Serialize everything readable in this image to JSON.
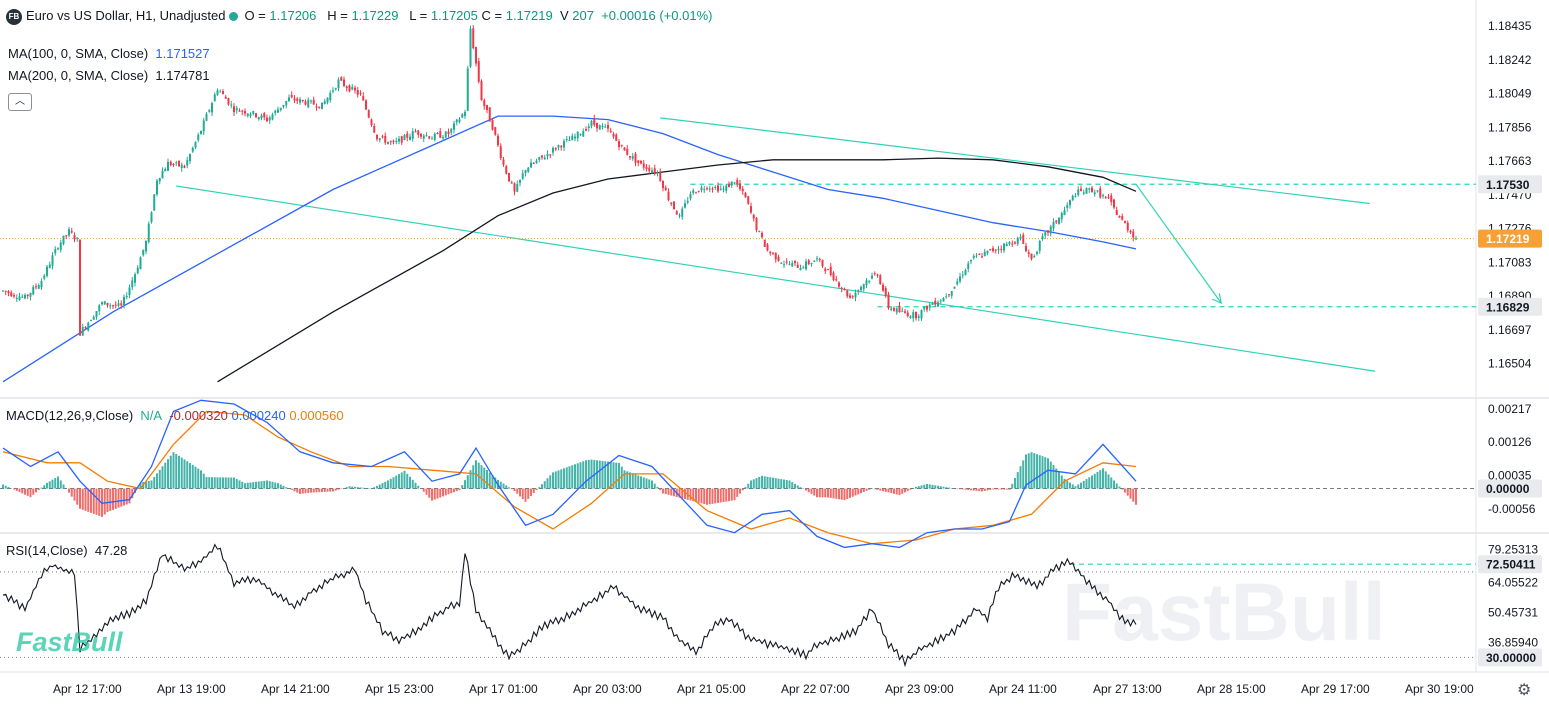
{
  "header": {
    "logo": "FB",
    "title": "Euro vs US Dollar, H1, Unadjusted",
    "open_label": "O",
    "open": "1.17206",
    "high_label": "H",
    "high": "1.17229",
    "low_label": "L",
    "low": "1.17205",
    "close_label": "C",
    "close": "1.17219",
    "volume_label": "V",
    "volume": "207",
    "change": "+0.00016 (+0.01%)"
  },
  "ma100": {
    "label": "MA(100, 0, SMA, Close)",
    "value": "1.171527",
    "color": "#2962ff"
  },
  "ma200": {
    "label": "MA(200, 0, SMA, Close)",
    "value": "1.174781",
    "color": "#131722"
  },
  "macd": {
    "label": "MACD(12,26,9,Close)",
    "na": "N/A",
    "hist": "-0.000320",
    "macd": "0.000240",
    "signal": "0.000560"
  },
  "rsi": {
    "label": "RSI(14,Close)",
    "value": "47.28"
  },
  "watermark": "FastBull",
  "colors": {
    "up": "#22ab94",
    "down": "#f23645",
    "ma100": "#2962ff",
    "ma200": "#131722",
    "macd": "#2962ff",
    "signal": "#f57c00",
    "channel": "#2ed3b7",
    "price_tag": "#f7a035"
  },
  "chart_data": {
    "type": "candlestick",
    "title": "Euro vs US Dollar, H1, Unadjusted",
    "x_ticks": [
      "Apr 12 17:00",
      "Apr 13 19:00",
      "Apr 14 21:00",
      "Apr 15 23:00",
      "Apr 17 01:00",
      "Apr 20 03:00",
      "Apr 21 05:00",
      "Apr 22 07:00",
      "Apr 23 09:00",
      "Apr 24 11:00",
      "Apr 27 13:00",
      "Apr 28 15:00",
      "Apr 29 17:00",
      "Apr 30 19:00"
    ],
    "price_axis": {
      "ticks": [
        "1.18435",
        "1.18242",
        "1.18049",
        "1.17856",
        "1.17663",
        "1.17470",
        "1.17276",
        "1.17083",
        "1.16890",
        "1.16697",
        "1.16504"
      ],
      "ylim": [
        1.1633,
        1.1855
      ]
    },
    "price_labels": [
      {
        "value": "1.17530",
        "kind": "level"
      },
      {
        "value": "1.17219",
        "kind": "current"
      },
      {
        "value": "1.16829",
        "kind": "level"
      }
    ],
    "price_path": [
      [
        0,
        1.1692
      ],
      [
        8,
        1.1688
      ],
      [
        14,
        1.1698
      ],
      [
        20,
        1.1718
      ],
      [
        24,
        1.1726
      ],
      [
        27,
        1.1721
      ],
      [
        28,
        1.1668
      ],
      [
        36,
        1.1685
      ],
      [
        43,
        1.1683
      ],
      [
        48,
        1.1702
      ],
      [
        52,
        1.172
      ],
      [
        56,
        1.1756
      ],
      [
        60,
        1.1765
      ],
      [
        66,
        1.1763
      ],
      [
        72,
        1.1784
      ],
      [
        78,
        1.1808
      ],
      [
        84,
        1.1796
      ],
      [
        90,
        1.1794
      ],
      [
        96,
        1.179
      ],
      [
        104,
        1.1802
      ],
      [
        110,
        1.18
      ],
      [
        116,
        1.1798
      ],
      [
        122,
        1.1812
      ],
      [
        130,
        1.1804
      ],
      [
        136,
        1.178
      ],
      [
        142,
        1.1776
      ],
      [
        150,
        1.1783
      ],
      [
        156,
        1.178
      ],
      [
        162,
        1.1782
      ],
      [
        168,
        1.1795
      ],
      [
        170,
        1.1842
      ],
      [
        172,
        1.1822
      ],
      [
        174,
        1.1802
      ],
      [
        178,
        1.1786
      ],
      [
        182,
        1.1764
      ],
      [
        186,
        1.1748
      ],
      [
        190,
        1.1762
      ],
      [
        196,
        1.1768
      ],
      [
        202,
        1.1775
      ],
      [
        208,
        1.178
      ],
      [
        214,
        1.1788
      ],
      [
        220,
        1.1784
      ],
      [
        226,
        1.1772
      ],
      [
        232,
        1.1764
      ],
      [
        238,
        1.176
      ],
      [
        242,
        1.1745
      ],
      [
        246,
        1.1734
      ],
      [
        250,
        1.1748
      ],
      [
        256,
        1.1752
      ],
      [
        262,
        1.175
      ],
      [
        266,
        1.1755
      ],
      [
        270,
        1.1745
      ],
      [
        274,
        1.1728
      ],
      [
        278,
        1.1715
      ],
      [
        284,
        1.1708
      ],
      [
        290,
        1.1706
      ],
      [
        296,
        1.171
      ],
      [
        302,
        1.17
      ],
      [
        308,
        1.1688
      ],
      [
        314,
        1.1698
      ],
      [
        318,
        1.1702
      ],
      [
        322,
        1.1683
      ],
      [
        326,
        1.168
      ],
      [
        332,
        1.1678
      ],
      [
        338,
        1.1685
      ],
      [
        342,
        1.1688
      ],
      [
        346,
        1.1695
      ],
      [
        352,
        1.171
      ],
      [
        358,
        1.1714
      ],
      [
        364,
        1.1718
      ],
      [
        370,
        1.1722
      ],
      [
        374,
        1.171
      ],
      [
        378,
        1.1722
      ],
      [
        382,
        1.173
      ],
      [
        386,
        1.1738
      ],
      [
        390,
        1.1748
      ],
      [
        396,
        1.175
      ],
      [
        402,
        1.1744
      ],
      [
        406,
        1.1734
      ],
      [
        410,
        1.1726
      ],
      [
        412,
        1.1722
      ]
    ],
    "moving_averages": [
      {
        "name": "MA(100, 0, SMA, Close)",
        "value": 1.171527,
        "points": [
          [
            0,
            1.164
          ],
          [
            40,
            1.168
          ],
          [
            80,
            1.1715
          ],
          [
            120,
            1.175
          ],
          [
            160,
            1.1778
          ],
          [
            180,
            1.1792
          ],
          [
            200,
            1.1792
          ],
          [
            220,
            1.179
          ],
          [
            240,
            1.1782
          ],
          [
            260,
            1.177
          ],
          [
            280,
            1.176
          ],
          [
            300,
            1.175
          ],
          [
            320,
            1.1745
          ],
          [
            340,
            1.1738
          ],
          [
            360,
            1.1731
          ],
          [
            380,
            1.1726
          ],
          [
            400,
            1.172
          ],
          [
            412,
            1.1716
          ]
        ]
      },
      {
        "name": "MA(200, 0, SMA, Close)",
        "value": 1.174781,
        "points": [
          [
            78,
            1.164
          ],
          [
            120,
            1.168
          ],
          [
            160,
            1.1715
          ],
          [
            180,
            1.1735
          ],
          [
            200,
            1.1748
          ],
          [
            220,
            1.1756
          ],
          [
            240,
            1.176
          ],
          [
            260,
            1.1764
          ],
          [
            280,
            1.1767
          ],
          [
            300,
            1.1767
          ],
          [
            320,
            1.1767
          ],
          [
            340,
            1.1768
          ],
          [
            360,
            1.1767
          ],
          [
            380,
            1.1763
          ],
          [
            400,
            1.1757
          ],
          [
            412,
            1.1749
          ]
        ]
      }
    ],
    "channel": {
      "upper": [
        [
          239,
          1.1791
        ],
        [
          497,
          1.1742
        ]
      ],
      "lower": [
        [
          63,
          1.1752
        ],
        [
          499,
          1.1646
        ]
      ]
    },
    "levels": [
      1.1753,
      1.16829
    ],
    "arrow": {
      "from": [
        412,
        1.1753
      ],
      "to": [
        443,
        1.1685
      ]
    },
    "macd": {
      "ticks": [
        "0.00217",
        "0.00126",
        "0.00035",
        "0.00000",
        "-0.00056"
      ],
      "hist_now": -0.00032,
      "macd_now": 0.00024,
      "signal_now": 0.00056,
      "macd_line": [
        [
          0,
          0.0011
        ],
        [
          10,
          0.0006
        ],
        [
          20,
          0.001
        ],
        [
          28,
          0.0002
        ],
        [
          36,
          -0.0004
        ],
        [
          46,
          -0.0003
        ],
        [
          54,
          0.0006
        ],
        [
          62,
          0.0021
        ],
        [
          72,
          0.0024
        ],
        [
          84,
          0.0023
        ],
        [
          96,
          0.0018
        ],
        [
          108,
          0.001
        ],
        [
          120,
          0.0007
        ],
        [
          134,
          0.0006
        ],
        [
          146,
          0.001
        ],
        [
          156,
          0.0002
        ],
        [
          166,
          0.0004
        ],
        [
          172,
          0.0011
        ],
        [
          180,
          0.0001
        ],
        [
          190,
          -0.001
        ],
        [
          200,
          -0.0007
        ],
        [
          212,
          0.0002
        ],
        [
          224,
          0.0009
        ],
        [
          236,
          0.0006
        ],
        [
          246,
          -0.0002
        ],
        [
          256,
          -0.001
        ],
        [
          266,
          -0.0012
        ],
        [
          276,
          -0.0007
        ],
        [
          286,
          -0.0006
        ],
        [
          296,
          -0.0013
        ],
        [
          306,
          -0.0016
        ],
        [
          316,
          -0.0015
        ],
        [
          326,
          -0.0016
        ],
        [
          336,
          -0.0012
        ],
        [
          346,
          -0.0011
        ],
        [
          356,
          -0.0011
        ],
        [
          366,
          -0.0009
        ],
        [
          372,
          0.0001
        ],
        [
          380,
          0.0005
        ],
        [
          390,
          0.0004
        ],
        [
          400,
          0.0012
        ],
        [
          412,
          0.0002
        ]
      ],
      "signal_line": [
        [
          0,
          0.001
        ],
        [
          16,
          0.0007
        ],
        [
          28,
          0.0007
        ],
        [
          38,
          0.0002
        ],
        [
          50,
          0.0
        ],
        [
          62,
          0.0012
        ],
        [
          74,
          0.0021
        ],
        [
          88,
          0.002
        ],
        [
          100,
          0.0014
        ],
        [
          112,
          0.001
        ],
        [
          126,
          0.0006
        ],
        [
          140,
          0.0006
        ],
        [
          156,
          0.0005
        ],
        [
          172,
          0.0004
        ],
        [
          186,
          -0.0005
        ],
        [
          200,
          -0.0011
        ],
        [
          214,
          -0.0004
        ],
        [
          226,
          0.0004
        ],
        [
          240,
          0.0004
        ],
        [
          256,
          -0.0006
        ],
        [
          272,
          -0.0011
        ],
        [
          286,
          -0.0008
        ],
        [
          300,
          -0.0012
        ],
        [
          316,
          -0.0015
        ],
        [
          332,
          -0.0014
        ],
        [
          346,
          -0.0011
        ],
        [
          360,
          -0.001
        ],
        [
          374,
          -0.0007
        ],
        [
          386,
          0.0002
        ],
        [
          400,
          0.0007
        ],
        [
          412,
          0.0006
        ]
      ]
    },
    "rsi": {
      "ticks": [
        "79.25313",
        "72.50411",
        "64.05522",
        "50.45731",
        "36.85940",
        "30.00000"
      ],
      "ylim": [
        27,
        84
      ],
      "current": 47.28,
      "upper_level": 72.50411,
      "lower_level": 30.0,
      "points": [
        [
          0,
          59
        ],
        [
          8,
          52
        ],
        [
          14,
          68
        ],
        [
          18,
          72
        ],
        [
          22,
          70
        ],
        [
          26,
          68
        ],
        [
          28,
          34
        ],
        [
          34,
          40
        ],
        [
          40,
          48
        ],
        [
          46,
          50
        ],
        [
          52,
          56
        ],
        [
          58,
          77
        ],
        [
          66,
          70
        ],
        [
          72,
          74
        ],
        [
          78,
          81
        ],
        [
          84,
          64
        ],
        [
          92,
          66
        ],
        [
          100,
          58
        ],
        [
          106,
          53
        ],
        [
          112,
          60
        ],
        [
          120,
          66
        ],
        [
          128,
          70
        ],
        [
          132,
          56
        ],
        [
          138,
          42
        ],
        [
          144,
          38
        ],
        [
          150,
          42
        ],
        [
          156,
          48
        ],
        [
          162,
          53
        ],
        [
          166,
          55
        ],
        [
          168,
          78
        ],
        [
          172,
          52
        ],
        [
          178,
          40
        ],
        [
          184,
          30
        ],
        [
          190,
          36
        ],
        [
          196,
          44
        ],
        [
          204,
          48
        ],
        [
          212,
          54
        ],
        [
          222,
          62
        ],
        [
          232,
          52
        ],
        [
          240,
          48
        ],
        [
          246,
          38
        ],
        [
          252,
          32
        ],
        [
          258,
          44
        ],
        [
          264,
          48
        ],
        [
          270,
          40
        ],
        [
          278,
          36
        ],
        [
          286,
          34
        ],
        [
          292,
          31
        ],
        [
          296,
          36
        ],
        [
          302,
          38
        ],
        [
          310,
          42
        ],
        [
          316,
          52
        ],
        [
          322,
          36
        ],
        [
          328,
          28
        ],
        [
          334,
          34
        ],
        [
          340,
          38
        ],
        [
          346,
          42
        ],
        [
          354,
          52
        ],
        [
          358,
          48
        ],
        [
          362,
          62
        ],
        [
          368,
          68
        ],
        [
          376,
          62
        ],
        [
          382,
          70
        ],
        [
          388,
          74
        ],
        [
          392,
          68
        ],
        [
          396,
          62
        ],
        [
          402,
          56
        ],
        [
          406,
          48
        ],
        [
          412,
          45
        ]
      ]
    }
  }
}
